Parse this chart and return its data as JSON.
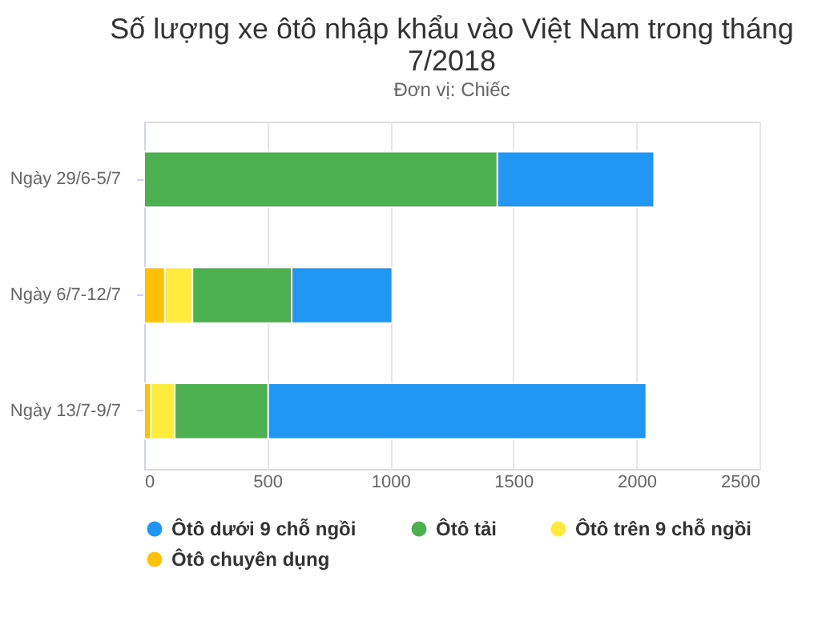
{
  "chart_data": {
    "type": "bar",
    "orientation": "horizontal",
    "stacked": true,
    "title": "Số lượng xe ôtô nhập khẩu vào Việt Nam trong tháng 7/2018",
    "subtitle": "Đơn vị: Chiếc",
    "categories": [
      "Ngày 29/6-5/7",
      "Ngày 6/7-12/7",
      "Ngày 13/7-9/7"
    ],
    "series": [
      {
        "name": "Ôtô chuyên dụng",
        "color": "#ffc107",
        "values": [
          0,
          84,
          27
        ]
      },
      {
        "name": "Ôtô trên 9 chỗ ngồi",
        "color": "#ffeb3b",
        "values": [
          0,
          112,
          97
        ]
      },
      {
        "name": "Ôtô tải",
        "color": "#4caf50",
        "values": [
          1435,
          403,
          380
        ]
      },
      {
        "name": "Ôtô dưới 9 chỗ ngồi",
        "color": "#2196f3",
        "values": [
          637,
          409,
          1536
        ]
      }
    ],
    "xlim": [
      0,
      2500
    ],
    "xticks": [
      0,
      500,
      1000,
      1500,
      2000,
      2500
    ],
    "grid": "x",
    "legend": "bottom"
  }
}
